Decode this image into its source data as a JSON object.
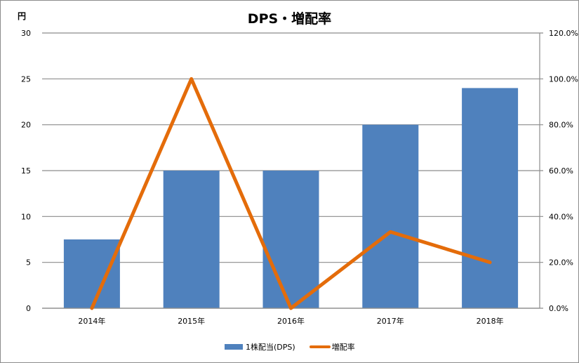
{
  "chart_data": {
    "type": "bar",
    "title": "DPS・増配率",
    "ylabel": "円",
    "ylabel2": "",
    "xlabel": "",
    "categories": [
      "2014年",
      "2015年",
      "2016年",
      "2017年",
      "2018年"
    ],
    "series": [
      {
        "name": "1株配当(DPS)",
        "type": "bar",
        "axis": "left",
        "color": "#4f81bd",
        "values": [
          7.5,
          15,
          15,
          20,
          24
        ]
      },
      {
        "name": "増配率",
        "type": "line",
        "axis": "right",
        "color": "#e46c0a",
        "values": [
          0.0,
          100.0,
          0.0,
          33.3,
          20.0
        ]
      }
    ],
    "ylim": [
      0,
      30
    ],
    "y2lim": [
      0,
      120
    ],
    "yticks": [
      "0",
      "5",
      "10",
      "15",
      "20",
      "25",
      "30"
    ],
    "y2ticks": [
      "0.0%",
      "20.0%",
      "40.0%",
      "60.0%",
      "80.0%",
      "100.0%",
      "120.0%"
    ],
    "grid": true,
    "legend_position": "bottom"
  }
}
